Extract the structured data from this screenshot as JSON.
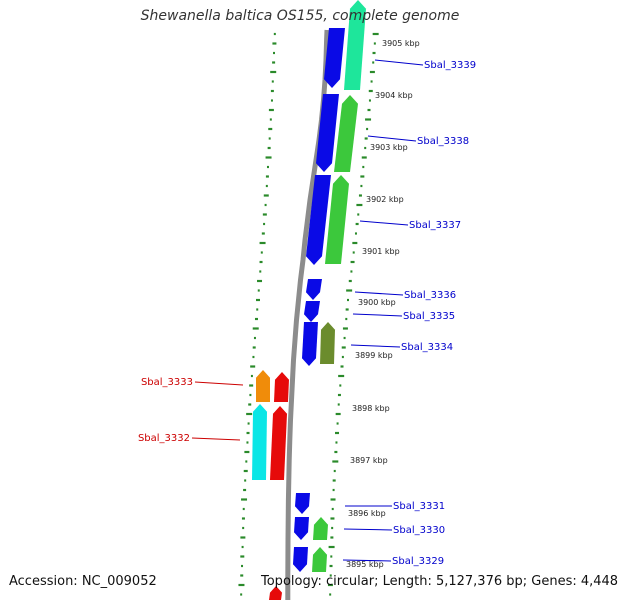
{
  "title": "Shewanella baltica OS155, complete genome",
  "footer": {
    "accession": "Accession: NC_009052",
    "summary": "Topology: circular; Length: 5,127,376 bp; Genes: 4,448"
  },
  "colors": {
    "plus_strand_label": "#0000cc",
    "minus_strand_label": "#cc0000",
    "backbone": "#8c8c8c",
    "gc_ticks": "#2a8a2a",
    "cds_blue": "#0a0ae6",
    "cds_green": "#3cc83c",
    "cds_teal": "#1ee69b",
    "cds_olive": "#6b8c2d",
    "cds_red": "#e60a0a",
    "cds_cyan": "#0ae6e6",
    "cds_orange": "#f08c0a"
  },
  "kbp_markers": [
    "3905 kbp",
    "3904 kbp",
    "3903 kbp",
    "3902 kbp",
    "3901 kbp",
    "3900 kbp",
    "3899 kbp",
    "3898 kbp",
    "3897 kbp",
    "3896 kbp",
    "3895 kbp"
  ],
  "genes": [
    {
      "label": "Sbal_3339",
      "strand": "plus"
    },
    {
      "label": "Sbal_3338",
      "strand": "plus"
    },
    {
      "label": "Sbal_3337",
      "strand": "plus"
    },
    {
      "label": "Sbal_3336",
      "strand": "plus"
    },
    {
      "label": "Sbal_3335",
      "strand": "plus"
    },
    {
      "label": "Sbal_3334",
      "strand": "plus"
    },
    {
      "label": "Sbal_3333",
      "strand": "minus"
    },
    {
      "label": "Sbal_3332",
      "strand": "minus"
    },
    {
      "label": "Sbal_3331",
      "strand": "plus"
    },
    {
      "label": "Sbal_3330",
      "strand": "plus"
    },
    {
      "label": "Sbal_3329",
      "strand": "plus"
    }
  ]
}
